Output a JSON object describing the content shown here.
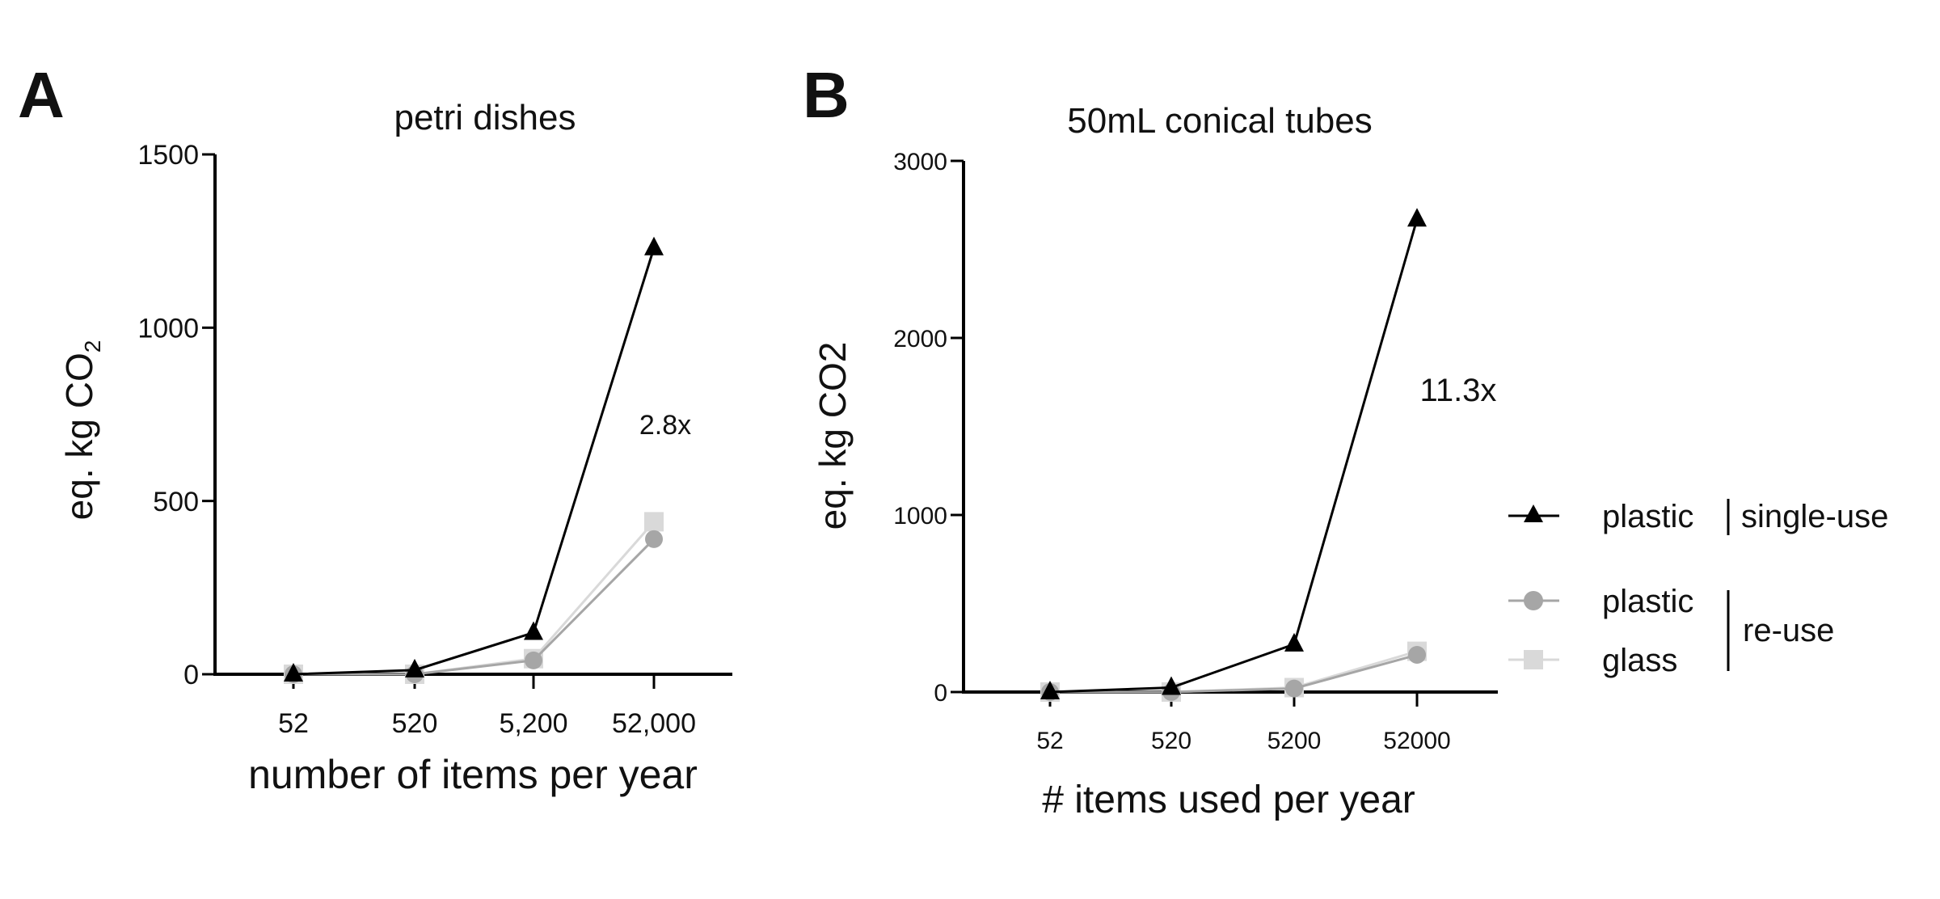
{
  "chart_data": [
    {
      "type": "line",
      "panel_label": "A",
      "title": "petri dishes",
      "xlabel": "number of items per year",
      "ylabel": "eq. kg CO",
      "ylabel_sub": "2",
      "categories": [
        "52",
        "520",
        "5,200",
        "52,000"
      ],
      "ylim": [
        0,
        1500
      ],
      "yticks": [
        0,
        500,
        1000,
        1500
      ],
      "annotation": "2.8x",
      "series": [
        {
          "name": "plastic | single-use",
          "marker": "triangle",
          "color": "#000000",
          "values": [
            0,
            12,
            120,
            1230
          ]
        },
        {
          "name": "plastic re-use",
          "marker": "circle",
          "color": "#a6a6a6",
          "values": [
            0,
            0,
            40,
            390
          ]
        },
        {
          "name": "glass re-use",
          "marker": "square",
          "color": "#d9d9d9",
          "values": [
            0,
            0,
            45,
            440
          ]
        }
      ]
    },
    {
      "type": "line",
      "panel_label": "B",
      "title": "50mL conical tubes",
      "xlabel": "# items used per year",
      "ylabel": "eq. kg CO2",
      "categories": [
        "52",
        "520",
        "5200",
        "52000"
      ],
      "ylim": [
        0,
        3000
      ],
      "yticks": [
        0,
        1000,
        2000,
        3000
      ],
      "annotation": "11.3x",
      "series": [
        {
          "name": "plastic | single-use",
          "marker": "triangle",
          "color": "#000000",
          "values": [
            0,
            25,
            270,
            2670
          ]
        },
        {
          "name": "plastic re-use",
          "marker": "circle",
          "color": "#a6a6a6",
          "values": [
            0,
            0,
            20,
            210
          ]
        },
        {
          "name": "glass re-use",
          "marker": "square",
          "color": "#d9d9d9",
          "values": [
            0,
            0,
            25,
            230
          ]
        }
      ]
    }
  ],
  "legend": {
    "single_use_material": "plastic",
    "single_use_label": "single-use",
    "reuse_items": [
      "plastic",
      "glass"
    ],
    "reuse_label": "re-use"
  }
}
